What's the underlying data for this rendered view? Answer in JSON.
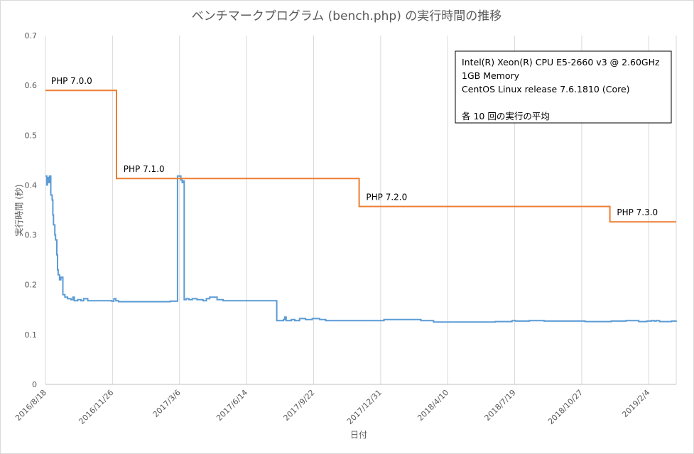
{
  "chart_data": {
    "type": "line",
    "title": "ベンチマークプログラム (bench.php) の実行時間の推移",
    "xlabel": "日付",
    "ylabel": "実行時間 (秒)",
    "ylim": [
      0,
      0.7
    ],
    "yticks": [
      "0",
      "0.1",
      "0.2",
      "0.3",
      "0.4",
      "0.5",
      "0.6",
      "0.7"
    ],
    "xlim": [
      "2016-08-18",
      "2019-03-17"
    ],
    "xticks": [
      {
        "date": "2016-08-18",
        "label": "2016/8/18"
      },
      {
        "date": "2016-11-26",
        "label": "2016/11/26"
      },
      {
        "date": "2017-03-06",
        "label": "2017/3/6"
      },
      {
        "date": "2017-06-14",
        "label": "2017/6/14"
      },
      {
        "date": "2017-09-22",
        "label": "2017/9/22"
      },
      {
        "date": "2017-12-31",
        "label": "2017/12/31"
      },
      {
        "date": "2018-04-10",
        "label": "2018/4/10"
      },
      {
        "date": "2018-07-19",
        "label": "2018/7/19"
      },
      {
        "date": "2018-10-27",
        "label": "2018/10/27"
      },
      {
        "date": "2019-02-04",
        "label": "2019/2/4"
      }
    ],
    "grid": "vertical",
    "legend": "none",
    "series": [
      {
        "color": "#5b9bd5",
        "step": true,
        "points": [
          [
            "2016-08-18",
            0.418
          ],
          [
            "2016-08-20",
            0.4
          ],
          [
            "2016-08-21",
            0.415
          ],
          [
            "2016-08-23",
            0.405
          ],
          [
            "2016-08-24",
            0.418
          ],
          [
            "2016-08-26",
            0.38
          ],
          [
            "2016-08-28",
            0.37
          ],
          [
            "2016-08-29",
            0.34
          ],
          [
            "2016-08-30",
            0.32
          ],
          [
            "2016-09-01",
            0.3
          ],
          [
            "2016-09-02",
            0.29
          ],
          [
            "2016-09-04",
            0.26
          ],
          [
            "2016-09-05",
            0.23
          ],
          [
            "2016-09-06",
            0.22
          ],
          [
            "2016-09-08",
            0.21
          ],
          [
            "2016-09-10",
            0.215
          ],
          [
            "2016-09-13",
            0.18
          ],
          [
            "2016-09-16",
            0.175
          ],
          [
            "2016-09-20",
            0.172
          ],
          [
            "2016-09-25",
            0.17
          ],
          [
            "2016-09-28",
            0.175
          ],
          [
            "2016-09-30",
            0.168
          ],
          [
            "2016-10-05",
            0.17
          ],
          [
            "2016-10-10",
            0.168
          ],
          [
            "2016-10-14",
            0.172
          ],
          [
            "2016-10-20",
            0.168
          ],
          [
            "2016-11-20",
            0.168
          ],
          [
            "2016-11-25",
            0.167
          ],
          [
            "2016-11-28",
            0.172
          ],
          [
            "2016-12-01",
            0.168
          ],
          [
            "2016-12-05",
            0.166
          ],
          [
            "2017-02-20",
            0.167
          ],
          [
            "2017-03-02",
            0.167
          ],
          [
            "2017-03-03",
            0.418
          ],
          [
            "2017-03-08",
            0.41
          ],
          [
            "2017-03-10",
            0.405
          ],
          [
            "2017-03-12",
            0.408
          ],
          [
            "2017-03-13",
            0.17
          ],
          [
            "2017-03-16",
            0.172
          ],
          [
            "2017-03-20",
            0.17
          ],
          [
            "2017-03-25",
            0.172
          ],
          [
            "2017-04-01",
            0.17
          ],
          [
            "2017-04-10",
            0.168
          ],
          [
            "2017-04-15",
            0.172
          ],
          [
            "2017-04-20",
            0.175
          ],
          [
            "2017-05-01",
            0.17
          ],
          [
            "2017-05-10",
            0.168
          ],
          [
            "2017-06-01",
            0.168
          ],
          [
            "2017-07-28",
            0.168
          ],
          [
            "2017-07-29",
            0.128
          ],
          [
            "2017-08-08",
            0.13
          ],
          [
            "2017-08-10",
            0.135
          ],
          [
            "2017-08-12",
            0.128
          ],
          [
            "2017-08-20",
            0.13
          ],
          [
            "2017-08-25",
            0.128
          ],
          [
            "2017-09-01",
            0.132
          ],
          [
            "2017-09-10",
            0.13
          ],
          [
            "2017-09-20",
            0.132
          ],
          [
            "2017-10-01",
            0.13
          ],
          [
            "2017-10-10",
            0.128
          ],
          [
            "2017-12-01",
            0.128
          ],
          [
            "2017-12-10",
            0.128
          ],
          [
            "2018-01-05",
            0.13
          ],
          [
            "2018-01-20",
            0.13
          ],
          [
            "2018-02-15",
            0.13
          ],
          [
            "2018-03-01",
            0.128
          ],
          [
            "2018-03-20",
            0.125
          ],
          [
            "2018-05-01",
            0.125
          ],
          [
            "2018-06-01",
            0.125
          ],
          [
            "2018-06-20",
            0.126
          ],
          [
            "2018-07-15",
            0.128
          ],
          [
            "2018-07-20",
            0.127
          ],
          [
            "2018-08-10",
            0.128
          ],
          [
            "2018-09-01",
            0.127
          ],
          [
            "2018-10-01",
            0.127
          ],
          [
            "2018-11-01",
            0.126
          ],
          [
            "2018-11-25",
            0.126
          ],
          [
            "2018-12-10",
            0.127
          ],
          [
            "2019-01-01",
            0.128
          ],
          [
            "2019-01-20",
            0.126
          ],
          [
            "2019-02-01",
            0.127
          ],
          [
            "2019-02-08",
            0.128
          ],
          [
            "2019-02-12",
            0.127
          ],
          [
            "2019-02-15",
            0.128
          ],
          [
            "2019-02-20",
            0.126
          ],
          [
            "2019-03-01",
            0.126
          ],
          [
            "2019-03-10",
            0.127
          ],
          [
            "2019-03-17",
            0.128
          ]
        ]
      },
      {
        "color": "#ed7d31",
        "step": true,
        "points": [
          [
            "2016-08-18",
            0.59
          ],
          [
            "2016-12-02",
            0.413
          ],
          [
            "2017-11-29",
            0.357
          ],
          [
            "2018-12-08",
            0.326
          ],
          [
            "2019-03-17",
            0.326
          ]
        ]
      }
    ],
    "annotations": [
      {
        "text": "PHP 7.0.0",
        "date": "2016-08-20",
        "y": 0.603
      },
      {
        "text": "PHP 7.1.0",
        "date": "2016-12-06",
        "y": 0.426
      },
      {
        "text": "PHP 7.2.0",
        "date": "2017-12-03",
        "y": 0.37
      },
      {
        "text": "PHP 7.3.0",
        "date": "2018-12-12",
        "y": 0.339
      }
    ],
    "note_box": {
      "lines": [
        "Intel(R) Xeon(R) CPU E5-2660 v3 @ 2.60GHz",
        "1GB Memory",
        "CentOS Linux release 7.6.1810 (Core)",
        "",
        "各 10 回の実行の平均"
      ]
    }
  }
}
